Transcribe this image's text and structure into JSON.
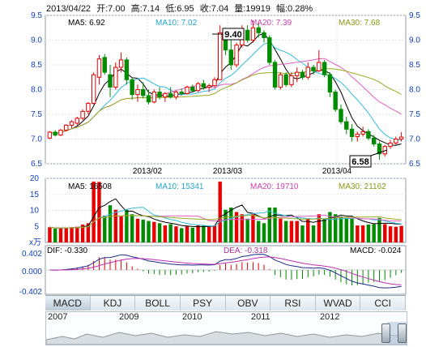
{
  "header": {
    "date": "2013/04/22",
    "open": "开:7.00",
    "high": "高:7.14",
    "low": "低:6.95",
    "close": "收:7.04",
    "volume": "量:19919",
    "change": "幅:0.28%"
  },
  "price_panel": {
    "ma5": "MA5: 6.92",
    "ma10": "MA10: 7.02",
    "ma20": "MA20: 7.39",
    "ma30": "MA30: 7.68",
    "high_marker": "9.40",
    "low_marker": "6.58",
    "y_ticks": [
      "9.5",
      "9.0",
      "8.5",
      "8.0",
      "7.5",
      "7.0",
      "6.5"
    ],
    "date_ticks": [
      "2013/02",
      "2013/03",
      "2013/04"
    ]
  },
  "volume_panel": {
    "ma5": "MA5: 16508",
    "ma10": "MA10: 15341",
    "ma20": "MA20: 19710",
    "ma30": "MA30: 21162",
    "y_ticks": [
      "20",
      "15",
      "10",
      "5",
      "x万"
    ]
  },
  "macd_panel": {
    "dif": "DIF: -0.330",
    "dea": "DEA: -0.318",
    "macd": "MACD: -0.024",
    "y_ticks": [
      "0.402",
      "0.000",
      "-0.402"
    ]
  },
  "tabs": [
    "MACD",
    "KDJ",
    "BOLL",
    "PSY",
    "OBV",
    "RSI",
    "WVAD",
    "CCI"
  ],
  "navigator": {
    "years": [
      "2007",
      "2009",
      "2010",
      "2011",
      "2012"
    ]
  },
  "colors": {
    "up": "#e60000",
    "down": "#008c00",
    "ma5": "#000000",
    "ma10": "#33bbdd",
    "ma20": "#e060c0",
    "ma30": "#99aa22"
  },
  "chart_data": {
    "type": "candlestick",
    "price_ylim": [
      6.5,
      9.5
    ],
    "volume_ylim": [
      0,
      20
    ],
    "volume_unit": "x万",
    "macd_ylim": [
      -0.402,
      0.402
    ],
    "candles": [
      [
        7.02,
        7.16,
        7.0,
        7.14
      ],
      [
        7.14,
        7.18,
        7.05,
        7.08
      ],
      [
        7.08,
        7.2,
        7.06,
        7.18
      ],
      [
        7.18,
        7.3,
        7.15,
        7.28
      ],
      [
        7.28,
        7.38,
        7.22,
        7.35
      ],
      [
        7.32,
        7.45,
        7.28,
        7.42
      ],
      [
        7.42,
        7.6,
        7.38,
        7.56
      ],
      [
        7.56,
        7.75,
        7.5,
        7.72
      ],
      [
        7.72,
        8.35,
        7.7,
        8.3
      ],
      [
        8.25,
        8.7,
        8.1,
        8.62
      ],
      [
        8.65,
        8.72,
        8.3,
        8.35
      ],
      [
        8.3,
        8.5,
        7.85,
        8.05
      ],
      [
        8.05,
        8.55,
        8.0,
        8.45
      ],
      [
        8.45,
        8.75,
        8.35,
        8.6
      ],
      [
        8.6,
        8.65,
        8.1,
        8.2
      ],
      [
        8.2,
        8.25,
        7.8,
        7.9
      ],
      [
        7.9,
        8.1,
        7.75,
        8.0
      ],
      [
        8.0,
        8.15,
        7.82,
        7.88
      ],
      [
        7.88,
        8.0,
        7.7,
        7.75
      ],
      [
        7.75,
        8.0,
        7.72,
        7.95
      ],
      [
        7.95,
        8.05,
        7.8,
        7.85
      ],
      [
        7.85,
        7.95,
        7.75,
        7.92
      ],
      [
        7.92,
        8.05,
        7.82,
        7.85
      ],
      [
        7.85,
        7.98,
        7.8,
        7.95
      ],
      [
        7.95,
        8.02,
        7.88,
        7.92
      ],
      [
        7.92,
        8.08,
        7.9,
        8.05
      ],
      [
        8.05,
        8.1,
        7.95,
        7.98
      ],
      [
        7.98,
        8.15,
        7.95,
        8.12
      ],
      [
        8.12,
        8.2,
        8.0,
        8.05
      ],
      [
        8.05,
        8.12,
        7.95,
        8.08
      ],
      [
        8.08,
        8.25,
        8.05,
        8.2
      ],
      [
        8.2,
        9.3,
        8.2,
        9.15
      ],
      [
        9.15,
        9.25,
        8.7,
        8.8
      ],
      [
        8.8,
        9.0,
        8.4,
        8.5
      ],
      [
        8.5,
        8.95,
        8.45,
        8.9
      ],
      [
        8.9,
        9.3,
        8.85,
        9.2
      ],
      [
        9.2,
        9.3,
        8.95,
        9.0
      ],
      [
        9.0,
        9.4,
        8.95,
        9.25
      ],
      [
        9.25,
        9.35,
        9.05,
        9.15
      ],
      [
        9.15,
        9.2,
        8.95,
        9.05
      ],
      [
        9.05,
        9.1,
        8.5,
        8.55
      ],
      [
        8.55,
        8.6,
        8.0,
        8.05
      ],
      [
        8.05,
        8.35,
        8.0,
        8.3
      ],
      [
        8.3,
        8.35,
        8.05,
        8.1
      ],
      [
        8.1,
        8.35,
        8.05,
        8.28
      ],
      [
        8.28,
        8.45,
        8.15,
        8.35
      ],
      [
        8.35,
        8.4,
        8.2,
        8.25
      ],
      [
        8.25,
        8.55,
        8.2,
        8.45
      ],
      [
        8.45,
        8.5,
        8.3,
        8.38
      ],
      [
        8.38,
        8.8,
        8.35,
        8.55
      ],
      [
        8.55,
        8.6,
        8.25,
        8.3
      ],
      [
        8.3,
        8.35,
        7.85,
        7.95
      ],
      [
        7.95,
        8.0,
        7.55,
        7.6
      ],
      [
        7.6,
        7.7,
        7.3,
        7.35
      ],
      [
        7.35,
        7.45,
        7.1,
        7.2
      ],
      [
        7.2,
        7.3,
        6.95,
        7.05
      ],
      [
        7.05,
        7.15,
        6.95,
        7.1
      ],
      [
        7.1,
        7.25,
        7.05,
        7.15
      ],
      [
        7.15,
        7.2,
        6.98,
        7.02
      ],
      [
        7.02,
        7.08,
        6.85,
        6.9
      ],
      [
        6.9,
        6.95,
        6.58,
        6.7
      ],
      [
        6.7,
        6.88,
        6.65,
        6.85
      ],
      [
        6.85,
        6.98,
        6.8,
        6.92
      ],
      [
        6.92,
        7.05,
        6.88,
        7.0
      ],
      [
        7.0,
        7.14,
        6.95,
        7.04
      ]
    ]
  }
}
